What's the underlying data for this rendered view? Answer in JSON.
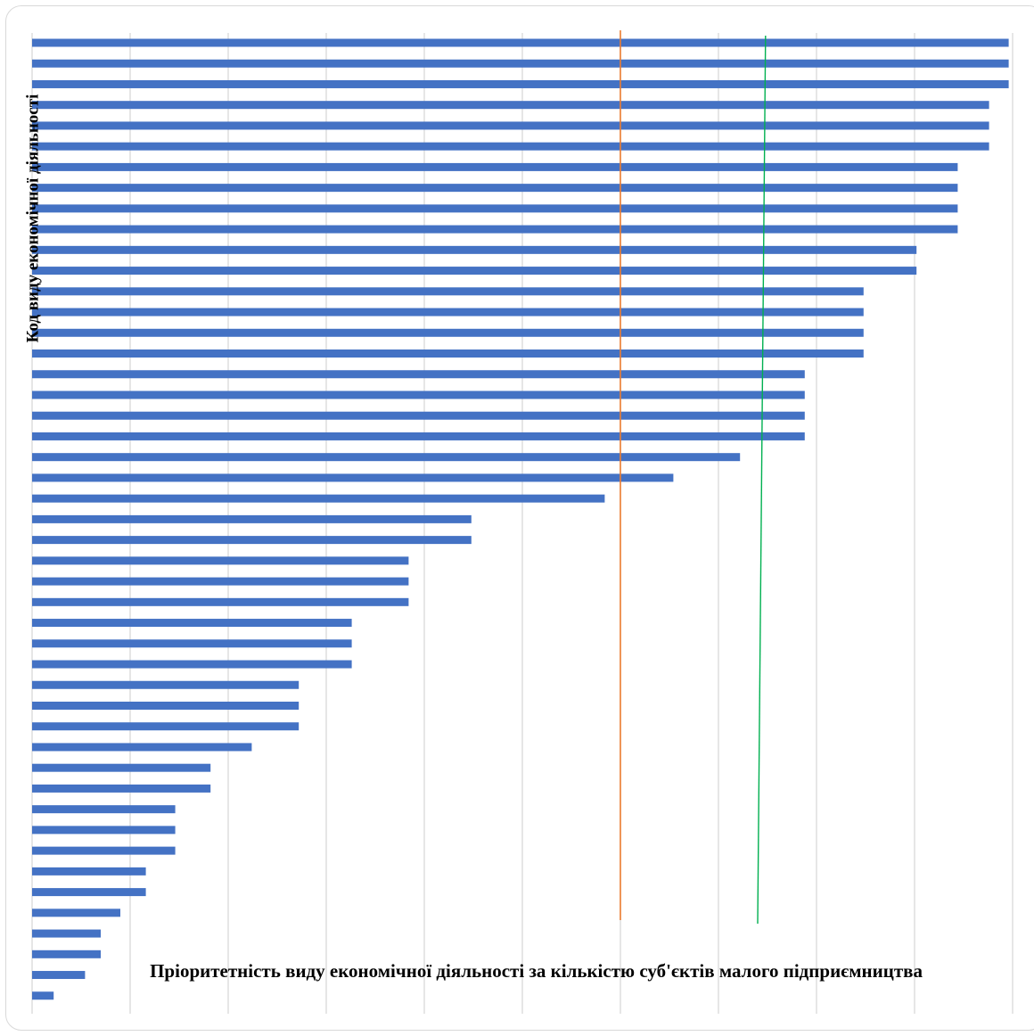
{
  "chart_data": {
    "type": "bar",
    "orientation": "horizontal",
    "title": "",
    "xlabel": "Пріоритетність виду економічної діяльності за кількістю суб'єктів малого підприємництва",
    "ylabel": "Код виду економічної діяльності",
    "xlim": [
      0,
      50
    ],
    "grid": true,
    "colors": {
      "bar": "#4472c4",
      "grid": "#d9d9d9",
      "line_orange": "#ed7d31",
      "line_green": "#00b050"
    },
    "values": [
      49.8,
      49.8,
      49.8,
      48.8,
      48.8,
      48.8,
      47.2,
      47.2,
      47.2,
      47.2,
      45.1,
      45.1,
      42.4,
      42.4,
      42.4,
      42.4,
      39.4,
      39.4,
      39.4,
      39.4,
      36.1,
      32.7,
      29.2,
      22.4,
      22.4,
      19.2,
      19.2,
      19.2,
      16.3,
      16.3,
      16.3,
      13.6,
      13.6,
      13.6,
      11.2,
      9.1,
      9.1,
      7.3,
      7.3,
      7.3,
      5.8,
      5.8,
      4.5,
      3.5,
      3.5,
      2.7,
      1.1
    ],
    "reference_lines": [
      {
        "color": "orange",
        "x": 30.0
      },
      {
        "color": "green",
        "x_top": 37.4,
        "x_bottom": 37.0
      }
    ]
  }
}
